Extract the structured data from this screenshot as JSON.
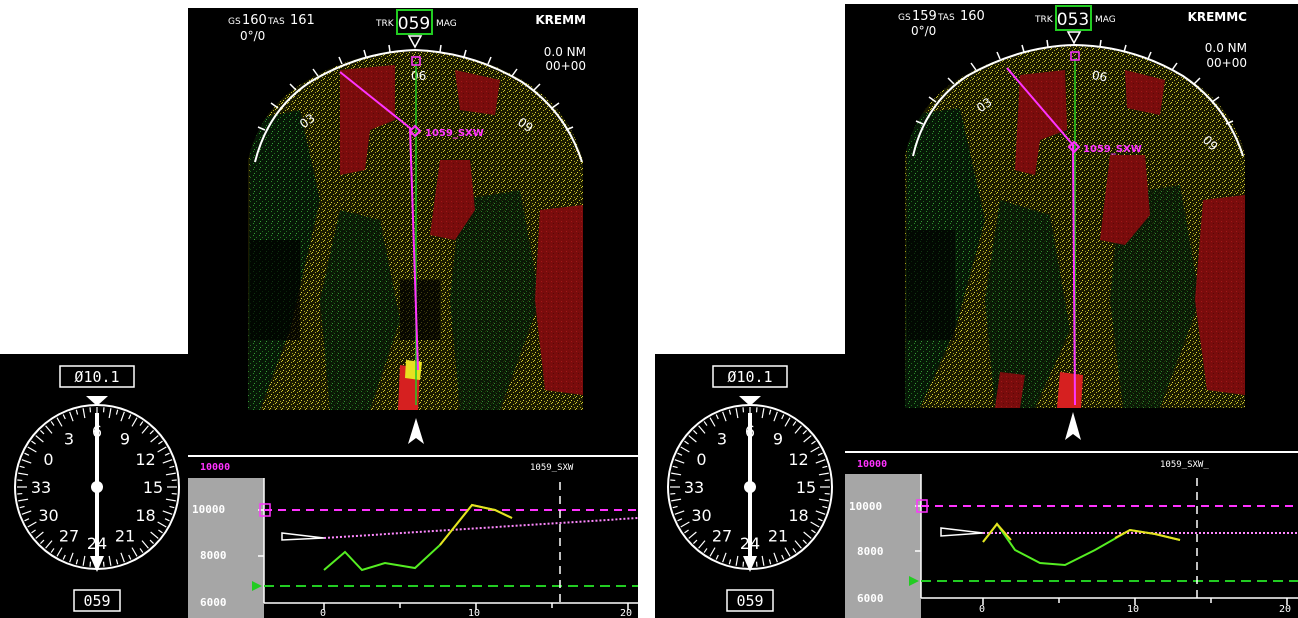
{
  "panels": [
    {
      "id": "left",
      "nd": {
        "gs_label": "GS",
        "gs_value": "160",
        "tas_label": "TAS",
        "tas_value": "161",
        "wind": "0°/0",
        "trk_label": "TRK",
        "trk_value": "059",
        "mag_label": "MAG",
        "waypoint_id": "KREMM",
        "distance": "0.0 NM",
        "eta": "00+00",
        "compass_labels": [
          "03",
          "06",
          "09"
        ],
        "fix_label": "1059_SXW",
        "track_deg": 59
      },
      "vsd": {
        "alt_selected": "10000",
        "waypoint_label": "1059_SXW",
        "alt_ticks": [
          "10000",
          "8000",
          "6000"
        ],
        "dist_ticks": [
          "0",
          "10",
          "20"
        ]
      },
      "heading_ind": {
        "top_value": "Ø10.1",
        "bottom_value": "059",
        "dial_labels": [
          "3",
          "6",
          "9",
          "12",
          "15",
          "18",
          "21",
          "24",
          "27",
          "30",
          "33",
          "0"
        ]
      }
    },
    {
      "id": "right",
      "nd": {
        "gs_label": "GS",
        "gs_value": "159",
        "tas_label": "TAS",
        "tas_value": "160",
        "wind": "0°/0",
        "trk_label": "TRK",
        "trk_value": "053",
        "mag_label": "MAG",
        "waypoint_id": "KREMMC",
        "distance": "0.0 NM",
        "eta": "00+00",
        "compass_labels": [
          "03",
          "06",
          "09"
        ],
        "fix_label": "1059_SXW",
        "track_deg": 53
      },
      "vsd": {
        "alt_selected": "10000",
        "waypoint_label": "1059_SXW_",
        "alt_ticks": [
          "10000",
          "8000",
          "6000"
        ],
        "dist_ticks": [
          "0",
          "10",
          "20"
        ]
      },
      "heading_ind": {
        "top_value": "Ø10.1",
        "bottom_value": "059",
        "dial_labels": [
          "3",
          "6",
          "9",
          "12",
          "15",
          "18",
          "21",
          "24",
          "27",
          "30",
          "33",
          "0"
        ]
      }
    }
  ],
  "colors": {
    "background": "#000000",
    "magenta": "#ff33ff",
    "green": "#22cc22",
    "yellow": "#c8b400",
    "terrain_yellow": "#8f8a1e",
    "terrain_green": "#1d5e1d",
    "terrain_red": "#8a0e0e",
    "panel_gray": "#a6a6a6",
    "white": "#ffffff"
  }
}
